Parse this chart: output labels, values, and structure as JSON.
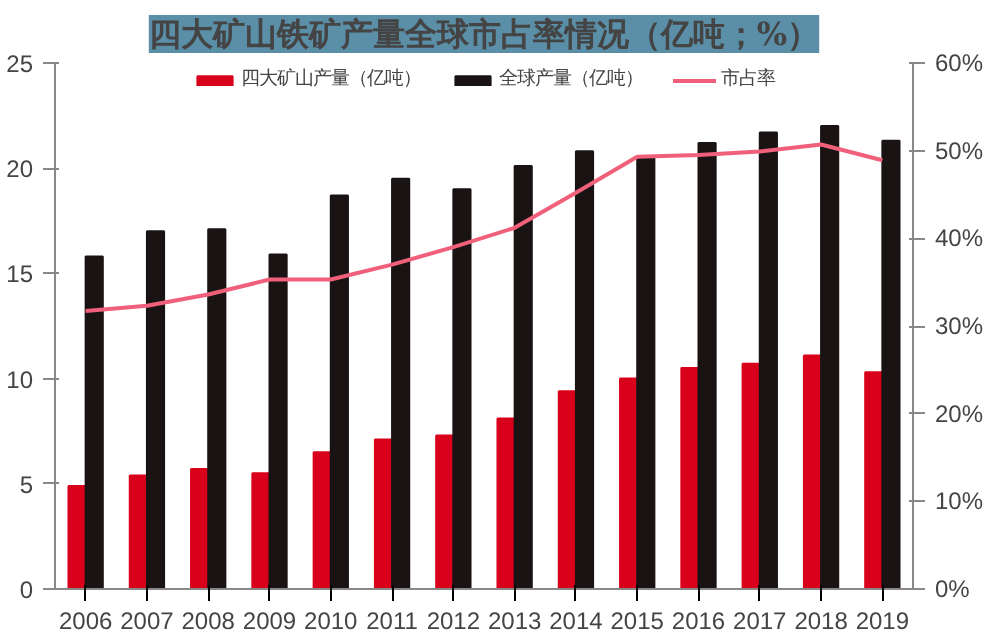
{
  "chart_data": {
    "type": "bar",
    "title": "四大矿山铁矿产量全球市占率情况（亿吨；%）",
    "categories": [
      "2006",
      "2007",
      "2008",
      "2009",
      "2010",
      "2011",
      "2012",
      "2013",
      "2014",
      "2015",
      "2016",
      "2017",
      "2018",
      "2019"
    ],
    "series": [
      {
        "name": "四大矿山产量（亿吨）",
        "color": "#d9001b",
        "values": [
          4.9,
          5.4,
          5.7,
          5.5,
          6.5,
          7.1,
          7.3,
          8.1,
          9.4,
          10.0,
          10.5,
          10.7,
          11.1,
          10.3
        ]
      },
      {
        "name": "全球产量（亿吨）",
        "color": "#1a1313",
        "values": [
          15.8,
          17.0,
          17.1,
          15.9,
          18.7,
          19.5,
          19.0,
          20.1,
          20.8,
          20.5,
          21.2,
          21.7,
          22.0,
          21.3
        ]
      },
      {
        "name": "市占率",
        "type": "line",
        "axis": "y2",
        "color": "#f0607a",
        "values": [
          31.7,
          32.3,
          33.6,
          35.3,
          35.3,
          37.0,
          39.0,
          41.2,
          45.2,
          49.3,
          49.5,
          49.9,
          50.7,
          48.9
        ]
      }
    ],
    "ylim": [
      0,
      25
    ],
    "yticks": [
      0,
      5,
      10,
      15,
      20,
      25
    ],
    "y2lim": [
      0,
      60
    ],
    "y2ticks": [
      {
        "value": 0,
        "label": "0%"
      },
      {
        "value": 10,
        "label": "10%"
      },
      {
        "value": 20,
        "label": "20%"
      },
      {
        "value": 30,
        "label": "30%"
      },
      {
        "value": 40,
        "label": "40%"
      },
      {
        "value": 50,
        "label": "50%"
      },
      {
        "value": 60,
        "label": "60%"
      }
    ],
    "legend": "top",
    "grid": false
  }
}
